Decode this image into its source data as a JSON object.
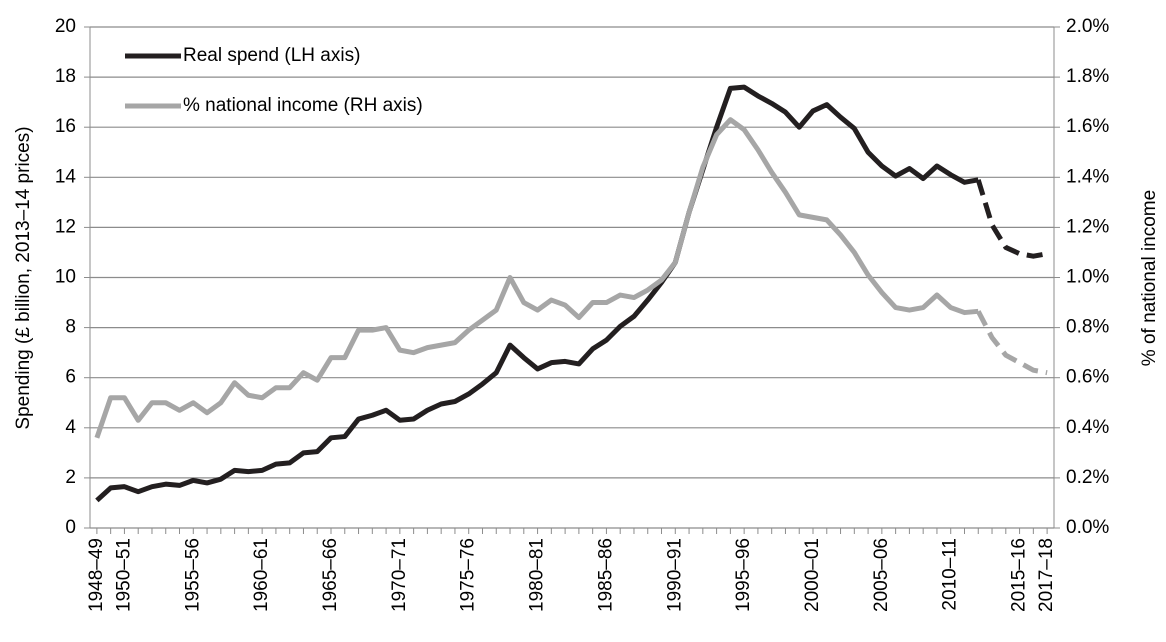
{
  "chart_data": {
    "type": "line",
    "ylabel": "Spending (£ billion, 2013–14 prices)",
    "y2label": "% of national income",
    "categories": [
      "1948–49",
      null,
      "1950–51",
      null,
      null,
      null,
      null,
      "1955–56",
      null,
      null,
      null,
      null,
      "1960–61",
      null,
      null,
      null,
      null,
      "1965–66",
      null,
      null,
      null,
      null,
      "1970–71",
      null,
      null,
      null,
      null,
      "1975–76",
      null,
      null,
      null,
      null,
      "1980–81",
      null,
      null,
      null,
      null,
      "1985–86",
      null,
      null,
      null,
      null,
      "1990–91",
      null,
      null,
      null,
      null,
      "1995–96",
      null,
      null,
      null,
      null,
      "2000–01",
      null,
      null,
      null,
      null,
      "2005–06",
      null,
      null,
      null,
      null,
      "2010–11",
      null,
      null,
      null,
      null,
      "2015–16",
      null,
      "2017–18"
    ],
    "series": [
      {
        "name": "Real spend (LH axis)",
        "color": "#231f20",
        "axis": "y",
        "dashed_from": 64,
        "values": [
          1.1,
          1.6,
          1.65,
          1.45,
          1.65,
          1.75,
          1.7,
          1.9,
          1.8,
          1.95,
          2.3,
          2.25,
          2.3,
          2.55,
          2.6,
          3.0,
          3.05,
          3.6,
          3.65,
          4.35,
          4.5,
          4.7,
          4.3,
          4.35,
          4.7,
          4.95,
          5.05,
          5.35,
          5.75,
          6.2,
          7.3,
          6.8,
          6.35,
          6.6,
          6.65,
          6.55,
          7.15,
          7.5,
          8.05,
          8.45,
          9.1,
          9.8,
          10.6,
          12.6,
          14.3,
          16.0,
          17.55,
          17.6,
          17.25,
          16.95,
          16.6,
          16.0,
          16.65,
          16.9,
          16.4,
          15.95,
          15.0,
          14.45,
          14.05,
          14.35,
          13.95,
          14.45,
          14.1,
          13.8,
          13.9,
          12.1,
          11.2,
          10.95,
          10.85,
          10.95
        ]
      },
      {
        "name": "% national income (RH axis)",
        "color": "#a6a6a6",
        "axis": "y2",
        "dashed_from": 64,
        "values": [
          0.36,
          0.52,
          0.52,
          0.43,
          0.5,
          0.5,
          0.47,
          0.5,
          0.46,
          0.5,
          0.58,
          0.53,
          0.52,
          0.56,
          0.56,
          0.62,
          0.59,
          0.68,
          0.68,
          0.79,
          0.79,
          0.8,
          0.71,
          0.7,
          0.72,
          0.73,
          0.74,
          0.79,
          0.83,
          0.87,
          1.0,
          0.9,
          0.87,
          0.91,
          0.89,
          0.84,
          0.9,
          0.9,
          0.93,
          0.92,
          0.95,
          0.99,
          1.06,
          1.26,
          1.44,
          1.57,
          1.63,
          1.59,
          1.51,
          1.42,
          1.34,
          1.25,
          1.24,
          1.23,
          1.17,
          1.1,
          1.01,
          0.94,
          0.88,
          0.87,
          0.88,
          0.93,
          0.88,
          0.86,
          0.865,
          0.76,
          0.69,
          0.66,
          0.63,
          0.62
        ]
      }
    ],
    "ylim": [
      0,
      20
    ],
    "yticks": [
      0,
      2,
      4,
      6,
      8,
      10,
      12,
      14,
      16,
      18,
      20
    ],
    "y2lim": [
      0,
      2.0
    ],
    "y2ticks": [
      {
        "value": 0,
        "label": "0.0%"
      },
      {
        "value": 0.2,
        "label": "0.2%"
      },
      {
        "value": 0.4,
        "label": "0.4%"
      },
      {
        "value": 0.6,
        "label": "0.6%"
      },
      {
        "value": 0.8,
        "label": "0.8%"
      },
      {
        "value": 1.0,
        "label": "1.0%"
      },
      {
        "value": 1.2,
        "label": "1.2%"
      },
      {
        "value": 1.4,
        "label": "1.4%"
      },
      {
        "value": 1.6,
        "label": "1.6%"
      },
      {
        "value": 1.8,
        "label": "1.8%"
      },
      {
        "value": 2.0,
        "label": "2.0%"
      }
    ],
    "grid": true,
    "legend": "upper-left"
  }
}
